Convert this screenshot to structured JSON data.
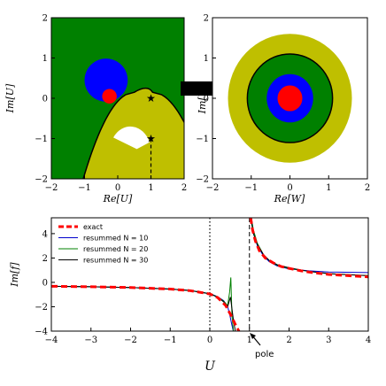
{
  "chart_data": [
    {
      "type": "diagram",
      "xlabel": "Re[U]",
      "ylabel": "Im[U]",
      "xlim": [
        -2,
        2
      ],
      "ylim": [
        -2,
        2
      ],
      "xticks": [
        -2,
        -1,
        0,
        1,
        2
      ],
      "yticks": [
        -2,
        -1,
        0,
        1,
        2
      ],
      "colors": {
        "green": "#008000",
        "blue": "#0000ff",
        "red": "#ff0000",
        "olive": "#bfbf00",
        "white": "#ffffff"
      },
      "blue_disk": {
        "center": [
          -0.35,
          0.45
        ],
        "radius": 0.65
      },
      "red_disk": {
        "center": [
          -0.25,
          0.05
        ],
        "radius": 0.22
      },
      "stars": [
        [
          1,
          0
        ],
        [
          1,
          -1
        ]
      ],
      "olive_region_boundary_x0": 0.5,
      "white_region": {
        "center": [
          0.45,
          -0.8
        ],
        "radius": 0.62
      },
      "dashed_line_x": 1,
      "dashed_line_y_range": [
        -2,
        -1
      ]
    },
    {
      "type": "diagram",
      "xlabel": "Re[W]",
      "ylabel": "Im[W]",
      "xlim": [
        -2,
        2
      ],
      "ylim": [
        -2,
        2
      ],
      "xticks": [
        -2,
        -1,
        0,
        1,
        2
      ],
      "yticks": [
        -2,
        -1,
        0,
        1,
        2
      ],
      "rings": [
        {
          "radius": 1.6,
          "color": "#bfbf00"
        },
        {
          "radius": 1.1,
          "color": "#008000",
          "outline": "#000000"
        },
        {
          "radius": 0.6,
          "color": "#0000ff"
        },
        {
          "radius": 0.32,
          "color": "#ff0000"
        }
      ]
    },
    {
      "type": "line",
      "xlabel": "U",
      "ylabel": "Im[f]",
      "xlim": [
        -4,
        4
      ],
      "ylim": [
        -4,
        5.3
      ],
      "xticks": [
        -4,
        -3,
        -2,
        -1,
        0,
        1,
        2,
        3,
        4
      ],
      "yticks": [
        -4,
        -2,
        0,
        2,
        4
      ],
      "legend_position": "top-left",
      "annotation": {
        "text": "pole",
        "x": 1,
        "y": -4
      },
      "dotted_vline_x": 0,
      "dashed_vline_x": 1,
      "series": [
        {
          "name": "exact",
          "color": "#ff0000",
          "style": "dashed",
          "x": [
            -4,
            -3,
            -2,
            -1,
            -0.5,
            0,
            0.2,
            0.4,
            0.55,
            0.65,
            0.75
          ],
          "y": [
            -0.32,
            -0.36,
            -0.42,
            -0.55,
            -0.68,
            -0.95,
            -1.25,
            -1.9,
            -2.8,
            -3.5,
            -4.1
          ],
          "x2": [
            1.03,
            1.08,
            1.15,
            1.25,
            1.4,
            1.6,
            1.8,
            2.0,
            2.3,
            2.6,
            3.0,
            3.5,
            4.0
          ],
          "y2": [
            5.3,
            4.3,
            3.4,
            2.6,
            2.0,
            1.6,
            1.3,
            1.15,
            0.95,
            0.8,
            0.65,
            0.55,
            0.45
          ]
        },
        {
          "name": "resummed N = 10",
          "color": "#0000cc",
          "style": "solid",
          "x": [
            -4,
            -3,
            -2,
            -1,
            -0.5,
            0,
            0.2,
            0.35,
            0.45,
            0.5,
            0.55,
            0.6
          ],
          "y": [
            -0.32,
            -0.36,
            -0.42,
            -0.55,
            -0.67,
            -0.92,
            -1.18,
            -1.5,
            -2.0,
            -2.6,
            -3.4,
            -4.1
          ],
          "x2": [
            1.05,
            1.1,
            1.2,
            1.35,
            1.5,
            1.7,
            2.0,
            2.5,
            3.0,
            4.0
          ],
          "y2": [
            5.3,
            4.2,
            3.0,
            2.2,
            1.7,
            1.35,
            1.1,
            0.95,
            0.85,
            0.8
          ]
        },
        {
          "name": "resummed N = 20",
          "color": "#008000",
          "style": "solid",
          "x": [
            -4,
            -3,
            -2,
            -1,
            -0.5,
            0,
            0.2,
            0.35,
            0.45,
            0.5,
            0.53,
            0.56,
            0.6
          ],
          "y": [
            -0.32,
            -0.36,
            -0.42,
            -0.55,
            -0.67,
            -0.93,
            -1.2,
            -1.55,
            -1.9,
            -0.8,
            0.4,
            -2.8,
            -4.1
          ],
          "x2": [
            1.04,
            1.1,
            1.2,
            1.35,
            1.5,
            1.7,
            2.0,
            2.5,
            3.0,
            4.0
          ],
          "y2": [
            5.3,
            4.3,
            3.2,
            2.3,
            1.8,
            1.4,
            1.15,
            0.9,
            0.7,
            0.55
          ]
        },
        {
          "name": "resummed N = 30",
          "color": "#000000",
          "style": "solid",
          "x": [
            -4,
            -3,
            -2,
            -1,
            -0.5,
            0,
            0.2,
            0.35,
            0.45,
            0.52,
            0.56,
            0.6,
            0.65
          ],
          "y": [
            -0.32,
            -0.36,
            -0.42,
            -0.55,
            -0.67,
            -0.94,
            -1.22,
            -1.6,
            -2.0,
            -1.2,
            -2.2,
            -3.2,
            -4.1
          ],
          "x2": [
            1.03,
            1.1,
            1.2,
            1.35,
            1.5,
            1.7,
            2.0,
            2.5,
            3.0,
            4.0
          ],
          "y2": [
            5.3,
            4.0,
            3.1,
            2.3,
            1.8,
            1.45,
            1.2,
            0.9,
            0.72,
            0.55
          ]
        }
      ]
    }
  ]
}
